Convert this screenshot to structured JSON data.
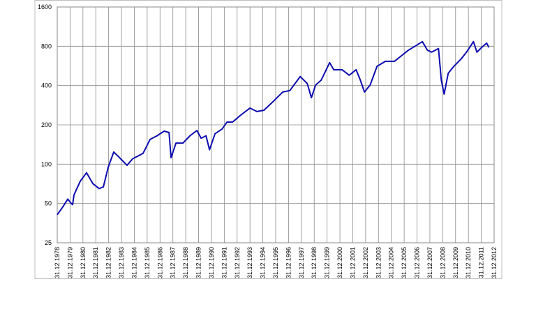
{
  "chart_data": {
    "type": "line",
    "log_y": true,
    "grid": true,
    "ylim": [
      25,
      1600
    ],
    "yticks": [
      25,
      50,
      100,
      200,
      400,
      800,
      1600
    ],
    "xlim": [
      1978,
      2012
    ],
    "xticks": [
      {
        "value": 1978,
        "label": "31.12.1978"
      },
      {
        "value": 1979,
        "label": "31.12.1979"
      },
      {
        "value": 1980,
        "label": "31.12.1980"
      },
      {
        "value": 1981,
        "label": "31.12.1981"
      },
      {
        "value": 1982,
        "label": "31.12.1982"
      },
      {
        "value": 1983,
        "label": "31.12.1983"
      },
      {
        "value": 1984,
        "label": "31.12.1984"
      },
      {
        "value": 1985,
        "label": "31.12.1985"
      },
      {
        "value": 1986,
        "label": "31.12.1986"
      },
      {
        "value": 1987,
        "label": "31.12.1987"
      },
      {
        "value": 1988,
        "label": "31.12.1988"
      },
      {
        "value": 1989,
        "label": "31.12.1989"
      },
      {
        "value": 1990,
        "label": "31.12.1990"
      },
      {
        "value": 1991,
        "label": "31.12.1991"
      },
      {
        "value": 1992,
        "label": "31.12.1992"
      },
      {
        "value": 1993,
        "label": "31.12.1993"
      },
      {
        "value": 1994,
        "label": "31.12.1994"
      },
      {
        "value": 1995,
        "label": "31.12.1995"
      },
      {
        "value": 1996,
        "label": "31.12.1996"
      },
      {
        "value": 1997,
        "label": "31.12.1997"
      },
      {
        "value": 1998,
        "label": "31.12.1998"
      },
      {
        "value": 1999,
        "label": "31.12.1999"
      },
      {
        "value": 2000,
        "label": "31.12.2000"
      },
      {
        "value": 2001,
        "label": "31.12.2001"
      },
      {
        "value": 2002,
        "label": "31.12.2002"
      },
      {
        "value": 2003,
        "label": "31.12.2003"
      },
      {
        "value": 2004,
        "label": "31.12.2004"
      },
      {
        "value": 2005,
        "label": "31.12.2005"
      },
      {
        "value": 2006,
        "label": "31.12.2006"
      },
      {
        "value": 2007,
        "label": "31.12.2007"
      },
      {
        "value": 2008,
        "label": "31.12.2008"
      },
      {
        "value": 2009,
        "label": "31.12.2009"
      },
      {
        "value": 2010,
        "label": "31.12.2010"
      },
      {
        "value": 2011,
        "label": "31.12.2011"
      },
      {
        "value": 2012,
        "label": "31.12.2012"
      }
    ],
    "x": [
      1978.0,
      1978.43,
      1978.82,
      1979.09,
      1979.2,
      1979.3,
      1979.79,
      1980.28,
      1980.77,
      1981.26,
      1981.59,
      1981.97,
      1982.4,
      1982.78,
      1983.43,
      1983.87,
      1984.68,
      1985.23,
      1985.77,
      1986.32,
      1986.7,
      1986.86,
      1987.24,
      1987.78,
      1988.33,
      1988.87,
      1989.2,
      1989.58,
      1989.85,
      1990.28,
      1990.83,
      1991.21,
      1991.64,
      1992.29,
      1993.0,
      1993.54,
      1994.09,
      1994.85,
      1995.55,
      1996.1,
      1996.91,
      1997.46,
      1997.78,
      1998.11,
      1998.54,
      1999.2,
      1999.52,
      2000.17,
      2000.72,
      2001.26,
      2001.59,
      2001.91,
      2002.35,
      2002.89,
      2003.54,
      2004.25,
      2004.79,
      2005.34,
      2005.88,
      2006.42,
      2006.8,
      2007.13,
      2007.67,
      2007.89,
      2008.11,
      2008.43,
      2008.87,
      2009.41,
      2009.85,
      2010.39,
      2010.66,
      2011.04,
      2011.42,
      2011.59
    ],
    "series": [
      {
        "color": "#0b0bb0",
        "values": [
          41,
          47,
          54,
          50,
          49,
          58,
          74,
          86,
          71,
          65,
          67,
          95,
          124,
          114,
          98,
          110,
          121,
          155,
          165,
          179,
          175,
          112,
          145,
          145,
          165,
          181,
          158,
          165,
          129,
          171,
          186,
          210,
          210,
          238,
          269,
          253,
          259,
          305,
          357,
          366,
          469,
          414,
          323,
          404,
          440,
          599,
          529,
          529,
          480,
          529,
          440,
          357,
          404,
          562,
          614,
          614,
          677,
          748,
          805,
          868,
          748,
          721,
          768,
          440,
          344,
          498,
          562,
          636,
          721,
          868,
          721,
          785,
          846,
          785
        ]
      }
    ]
  }
}
